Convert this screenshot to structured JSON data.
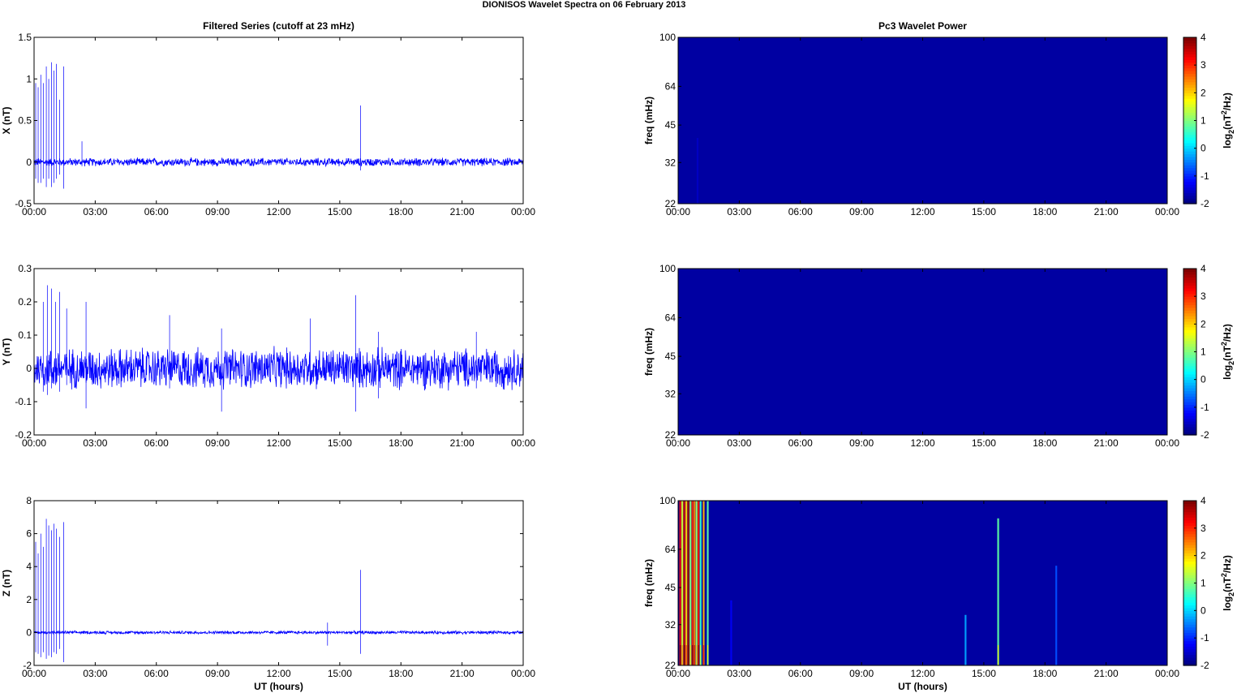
{
  "page_title": "DIONISOS Wavelet Spectra on 06 February  2013",
  "colors": {
    "series": "#0000ff",
    "background": "#00008f",
    "colormap": "jet"
  },
  "chart_data": [
    {
      "type": "line",
      "title": "Filtered Series (cutoff at 23 mHz)",
      "xlabel": "",
      "ylabel": "X (nT)",
      "xlim": [
        "00:00",
        "24:00"
      ],
      "ylim": [
        -0.5,
        1.5
      ],
      "x_ticks": [
        "00:00",
        "03:00",
        "06:00",
        "09:00",
        "12:00",
        "15:00",
        "18:00",
        "21:00",
        "00:00"
      ],
      "y_ticks": [
        "-0.5",
        "0",
        "0.5",
        "1",
        "1.5"
      ],
      "noise_amplitude": 0.04,
      "spikes": [
        {
          "t": 0.08,
          "v": 0.95,
          "m": -0.2
        },
        {
          "t": 0.2,
          "v": 0.9,
          "m": -0.25
        },
        {
          "t": 0.33,
          "v": 1.05,
          "m": -0.25
        },
        {
          "t": 0.45,
          "v": 0.95,
          "m": -0.2
        },
        {
          "t": 0.6,
          "v": 1.15,
          "m": -0.3
        },
        {
          "t": 0.72,
          "v": 1.0,
          "m": -0.2
        },
        {
          "t": 0.85,
          "v": 1.2,
          "m": -0.3
        },
        {
          "t": 0.97,
          "v": 1.1,
          "m": -0.25
        },
        {
          "t": 1.1,
          "v": 1.18,
          "m": -0.2
        },
        {
          "t": 1.25,
          "v": 0.75,
          "m": -0.15
        },
        {
          "t": 1.45,
          "v": 1.15,
          "m": -0.32
        },
        {
          "t": 2.35,
          "v": 0.25,
          "m": -0.05
        },
        {
          "t": 16.02,
          "v": 0.68,
          "m": -0.1
        }
      ]
    },
    {
      "type": "heatmap",
      "title": "Pc3 Wavelet Power",
      "xlabel": "",
      "ylabel": "freq (mHz)",
      "zlabel": "log2(nT2/Hz)",
      "xlim": [
        "00:00",
        "24:00"
      ],
      "ylim": [
        22,
        100
      ],
      "zlim": [
        -2,
        4
      ],
      "x_ticks": [
        "00:00",
        "03:00",
        "06:00",
        "09:00",
        "12:00",
        "15:00",
        "18:00",
        "21:00",
        "00:00"
      ],
      "y_ticks": [
        "22",
        "32",
        "45",
        "64",
        "100"
      ],
      "z_ticks": [
        "-2",
        "-1",
        "0",
        "1",
        "2",
        "3",
        "4"
      ],
      "background_level": -1.8,
      "bursts": [
        {
          "t": 0.95,
          "level": -1.6,
          "top": 40
        }
      ]
    },
    {
      "type": "line",
      "title": "",
      "xlabel": "",
      "ylabel": "Y (nT)",
      "xlim": [
        "00:00",
        "24:00"
      ],
      "ylim": [
        -0.2,
        0.3
      ],
      "x_ticks": [
        "00:00",
        "03:00",
        "06:00",
        "09:00",
        "12:00",
        "15:00",
        "18:00",
        "21:00",
        "00:00"
      ],
      "y_ticks": [
        "-0.2",
        "-0.1",
        "0",
        "0.1",
        "0.2",
        "0.3"
      ],
      "noise_amplitude": 0.05,
      "spikes": [
        {
          "t": 0.45,
          "v": 0.2,
          "m": -0.07
        },
        {
          "t": 0.65,
          "v": 0.25,
          "m": -0.08
        },
        {
          "t": 0.85,
          "v": 0.24,
          "m": -0.06
        },
        {
          "t": 1.05,
          "v": 0.2,
          "m": -0.05
        },
        {
          "t": 1.25,
          "v": 0.23,
          "m": -0.07
        },
        {
          "t": 1.6,
          "v": 0.18,
          "m": -0.05
        },
        {
          "t": 2.55,
          "v": 0.2,
          "m": -0.12
        },
        {
          "t": 6.65,
          "v": 0.16,
          "m": -0.06
        },
        {
          "t": 9.2,
          "v": 0.12,
          "m": -0.13
        },
        {
          "t": 13.55,
          "v": 0.15,
          "m": -0.05
        },
        {
          "t": 15.78,
          "v": 0.22,
          "m": -0.13
        },
        {
          "t": 16.9,
          "v": 0.11,
          "m": -0.09
        },
        {
          "t": 21.7,
          "v": 0.11,
          "m": -0.06
        }
      ]
    },
    {
      "type": "heatmap",
      "title": "",
      "xlabel": "",
      "ylabel": "freq (mHz)",
      "zlabel": "log2(nT2/Hz)",
      "xlim": [
        "00:00",
        "24:00"
      ],
      "ylim": [
        22,
        100
      ],
      "zlim": [
        -2,
        4
      ],
      "x_ticks": [
        "00:00",
        "03:00",
        "06:00",
        "09:00",
        "12:00",
        "15:00",
        "18:00",
        "21:00",
        "00:00"
      ],
      "y_ticks": [
        "22",
        "32",
        "45",
        "64",
        "100"
      ],
      "z_ticks": [
        "-2",
        "-1",
        "0",
        "1",
        "2",
        "3",
        "4"
      ],
      "background_level": -1.8,
      "bursts": []
    },
    {
      "type": "line",
      "title": "",
      "xlabel": "UT (hours)",
      "ylabel": "Z (nT)",
      "xlim": [
        "00:00",
        "24:00"
      ],
      "ylim": [
        -2,
        8
      ],
      "x_ticks": [
        "00:00",
        "03:00",
        "06:00",
        "09:00",
        "12:00",
        "15:00",
        "18:00",
        "21:00",
        "00:00"
      ],
      "y_ticks": [
        "-2",
        "0",
        "2",
        "4",
        "6",
        "8"
      ],
      "noise_amplitude": 0.08,
      "spikes": [
        {
          "t": 0.08,
          "v": 5.5,
          "m": -1.2
        },
        {
          "t": 0.2,
          "v": 4.8,
          "m": -1.3
        },
        {
          "t": 0.33,
          "v": 6.0,
          "m": -1.5
        },
        {
          "t": 0.45,
          "v": 5.2,
          "m": -1.2
        },
        {
          "t": 0.6,
          "v": 6.9,
          "m": -1.6
        },
        {
          "t": 0.72,
          "v": 6.5,
          "m": -1.4
        },
        {
          "t": 0.85,
          "v": 6.2,
          "m": -1.5
        },
        {
          "t": 0.97,
          "v": 6.6,
          "m": -1.2
        },
        {
          "t": 1.1,
          "v": 6.3,
          "m": -1.3
        },
        {
          "t": 1.25,
          "v": 5.8,
          "m": -1.0
        },
        {
          "t": 1.45,
          "v": 6.7,
          "m": -1.8
        },
        {
          "t": 14.4,
          "v": 0.6,
          "m": -0.8
        },
        {
          "t": 16.02,
          "v": 3.8,
          "m": -1.3
        }
      ]
    },
    {
      "type": "heatmap",
      "title": "",
      "xlabel": "UT (hours)",
      "ylabel": "freq (mHz)",
      "zlabel": "log2(nT2/Hz)",
      "xlim": [
        "00:00",
        "24:00"
      ],
      "ylim": [
        22,
        100
      ],
      "zlim": [
        -2,
        4
      ],
      "x_ticks": [
        "00:00",
        "03:00",
        "06:00",
        "09:00",
        "12:00",
        "15:00",
        "18:00",
        "21:00",
        "00:00"
      ],
      "y_ticks": [
        "22",
        "32",
        "45",
        "64",
        "100"
      ],
      "z_ticks": [
        "-2",
        "-1",
        "0",
        "1",
        "2",
        "3",
        "4"
      ],
      "background_level": -1.8,
      "bursts": [
        {
          "t": 0.1,
          "level": 3.2,
          "top": 100
        },
        {
          "t": 0.2,
          "level": 1.5,
          "top": 100
        },
        {
          "t": 0.3,
          "level": 3.5,
          "top": 100
        },
        {
          "t": 0.4,
          "level": 2.0,
          "top": 100
        },
        {
          "t": 0.5,
          "level": 3.8,
          "top": 100
        },
        {
          "t": 0.6,
          "level": 1.0,
          "top": 100
        },
        {
          "t": 0.7,
          "level": 3.0,
          "top": 100
        },
        {
          "t": 0.8,
          "level": 2.5,
          "top": 100
        },
        {
          "t": 0.9,
          "level": 1.2,
          "top": 100
        },
        {
          "t": 1.0,
          "level": 3.2,
          "top": 100
        },
        {
          "t": 1.1,
          "level": 0.5,
          "top": 100
        },
        {
          "t": 1.25,
          "level": 2.2,
          "top": 100
        },
        {
          "t": 1.45,
          "level": 0.8,
          "top": 100
        },
        {
          "t": 2.6,
          "level": -1.3,
          "top": 40
        },
        {
          "t": 14.1,
          "level": -0.3,
          "top": 35
        },
        {
          "t": 15.7,
          "level": 0.8,
          "top": 85
        },
        {
          "t": 18.55,
          "level": -0.8,
          "top": 55
        }
      ]
    }
  ]
}
